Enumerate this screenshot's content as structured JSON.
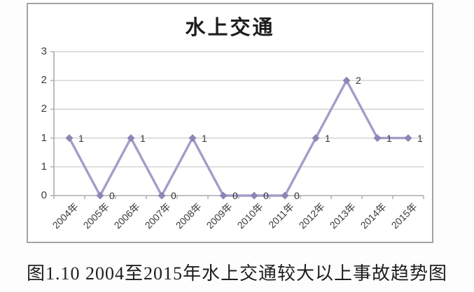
{
  "caption": "图1.10 2004至2015年水上交通较大以上事故趋势图",
  "chart_data": {
    "type": "line",
    "title": "水上交通",
    "categories": [
      "2004年",
      "2005年",
      "2006年",
      "2007年",
      "2008年",
      "2009年",
      "2010年",
      "2011年",
      "2012年",
      "2013年",
      "2014年",
      "2015年"
    ],
    "series": [
      {
        "name": "水上交通",
        "values": [
          1,
          0,
          1,
          0,
          1,
          0,
          0,
          0,
          1,
          2,
          1,
          1
        ]
      }
    ],
    "point_labels": [
      "1",
      "0",
      "1",
      "0",
      "1",
      "0",
      "0",
      "0",
      "1",
      "2",
      "1",
      "1"
    ],
    "xlabel": "",
    "ylabel": "",
    "ylim": [
      0,
      2.5
    ],
    "y_ticks": {
      "values": [
        0,
        0.5,
        1,
        1.5,
        2,
        2.5
      ],
      "labels": [
        "0",
        "1",
        "1",
        "2",
        "2",
        "3"
      ]
    },
    "grid": true,
    "legend_position": "none",
    "marker": "diamond",
    "colors": {
      "line": "#a39dc9",
      "marker": "#8c86b6",
      "gridline": "#c9c9c9",
      "axis": "#ababab",
      "tick_text": "#3a3a3a",
      "data_label_text": "#333333",
      "chart_border": "#a3a3a3",
      "title_text": "#1c1c1c"
    }
  }
}
